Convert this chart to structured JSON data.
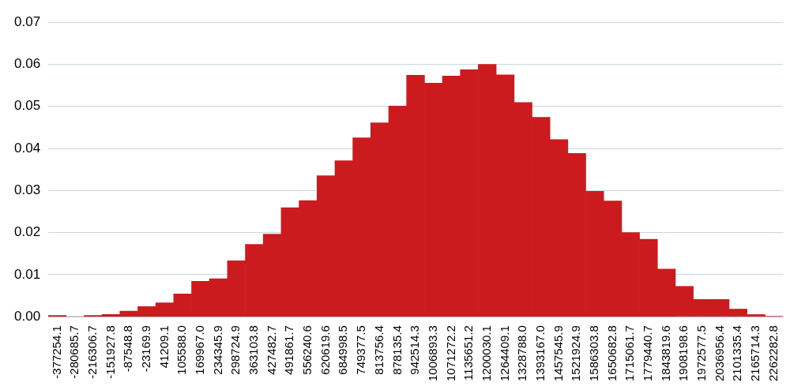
{
  "chart_data": {
    "type": "bar",
    "categories": [
      "-377254.1",
      "-280685.7",
      "-216306.7",
      "-151927.8",
      "-87548.8",
      "-23169.9",
      "41209.1",
      "105588.0",
      "169967.0",
      "234345.9",
      "298724.9",
      "363103.8",
      "427482.7",
      "491861.7",
      "556240.6",
      "620619.6",
      "684998.5",
      "749377.5",
      "813756.4",
      "878135.4",
      "942514.3",
      "1006893.3",
      "1071272.2",
      "1135651.2",
      "1200030.1",
      "1264409.1",
      "1328788.0",
      "1393167.0",
      "1457545.9",
      "1521924.9",
      "1586303.8",
      "1650682.8",
      "1715061.7",
      "1779440.7",
      "1843819.6",
      "1908198.6",
      "1972577.5",
      "2036956.4",
      "2101335.4",
      "2165714.3",
      "2262282.8"
    ],
    "values": [
      0.0003,
      0,
      0.0003,
      0.0005,
      0.0013,
      0.0024,
      0.0033,
      0.0054,
      0.0084,
      0.009,
      0.0133,
      0.0172,
      0.0196,
      0.0259,
      0.0276,
      0.0335,
      0.0371,
      0.0425,
      0.0461,
      0.0501,
      0.0574,
      0.0555,
      0.0572,
      0.0587,
      0.06,
      0.0575,
      0.0509,
      0.0474,
      0.0421,
      0.0388,
      0.0298,
      0.0275,
      0.02,
      0.0184,
      0.0113,
      0.0072,
      0.0041,
      0.0041,
      0.0018,
      0.0005,
      0.0001
    ],
    "color": "#cc1b1e",
    "ylim": [
      0,
      0.07
    ],
    "yticks": [
      {
        "value": 0,
        "label": "0.00"
      },
      {
        "value": 0.01,
        "label": "0.01"
      },
      {
        "value": 0.02,
        "label": "0.02"
      },
      {
        "value": 0.03,
        "label": "0.03"
      },
      {
        "value": 0.04,
        "label": "0.04"
      },
      {
        "value": 0.05,
        "label": "0.05"
      },
      {
        "value": 0.06,
        "label": "0.06"
      },
      {
        "value": 0.07,
        "label": "0.07"
      }
    ],
    "grid": "y"
  }
}
